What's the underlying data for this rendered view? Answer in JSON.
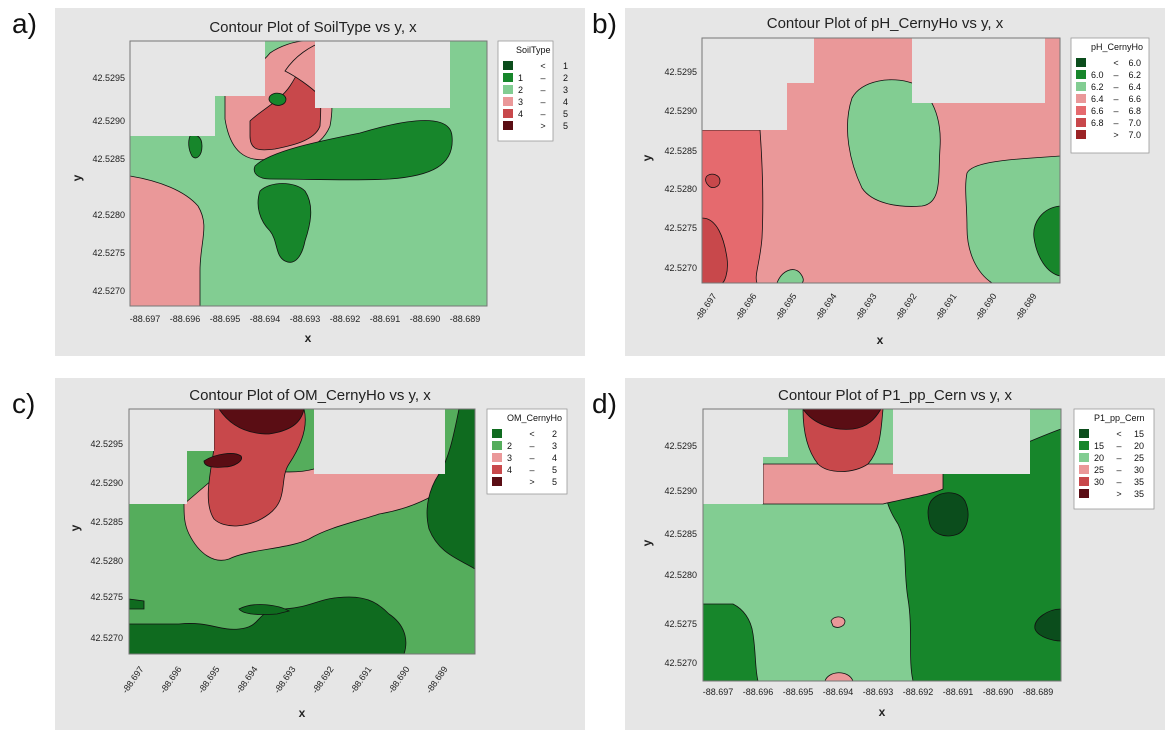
{
  "panel_tags": [
    "a)",
    "b)",
    "c)",
    "d)"
  ],
  "colors": {
    "c1": "#0b4d1c",
    "c2": "#17862b",
    "c3": "#82cd92",
    "c4": "#ea9899",
    "c5": "#c8484b",
    "c6": "#5a0d14",
    "g_light": "#82cd92",
    "g_mid": "#55ad5c",
    "g_dark": "#0f6b1f",
    "r_light": "#ea9899",
    "r_mid": "#e56a6e",
    "r_dark": "#c8484b",
    "r_deep": "#9b2325",
    "missing": "#e6e6e6",
    "panel_bg": "#e6e6e6"
  },
  "chart_data": [
    {
      "type": "contour",
      "title": "Contour Plot of SoilType vs y, x",
      "xlabel": "x",
      "ylabel": "y",
      "x_ticks": [
        "-88.697",
        "-88.696",
        "-88.695",
        "-88.694",
        "-88.693",
        "-88.692",
        "-88.691",
        "-88.690",
        "-88.689"
      ],
      "y_ticks": [
        "42.5270",
        "42.5275",
        "42.5280",
        "42.5285",
        "42.5290",
        "42.5295"
      ],
      "x_tick_rotation": 0,
      "legend": {
        "title": "SoilType",
        "entries": [
          {
            "low": "",
            "op": "<",
            "high": "1",
            "color": "c1"
          },
          {
            "low": "1",
            "op": "–",
            "high": "2",
            "color": "c2"
          },
          {
            "low": "2",
            "op": "–",
            "high": "3",
            "color": "c3"
          },
          {
            "low": "3",
            "op": "–",
            "high": "4",
            "color": "c4"
          },
          {
            "low": "4",
            "op": "–",
            "high": "5",
            "color": "c5"
          },
          {
            "low": "",
            "op": ">",
            "high": "5",
            "color": "c6"
          }
        ]
      },
      "dominant_level": "2 – 3"
    },
    {
      "type": "contour",
      "title": "Contour Plot of pH_CernyHo vs y, x",
      "xlabel": "x",
      "ylabel": "y",
      "x_ticks": [
        "-88.697",
        "-88.696",
        "-88.695",
        "-88.694",
        "-88.693",
        "-88.692",
        "-88.691",
        "-88.690",
        "-88.689"
      ],
      "y_ticks": [
        "42.5270",
        "42.5275",
        "42.5280",
        "42.5285",
        "42.5290",
        "42.5295"
      ],
      "x_tick_rotation": -55,
      "legend": {
        "title": "pH_CernyHo",
        "entries": [
          {
            "low": "",
            "op": "<",
            "high": "6.0",
            "color": "c1"
          },
          {
            "low": "6.0",
            "op": "–",
            "high": "6.2",
            "color": "c2"
          },
          {
            "low": "6.2",
            "op": "–",
            "high": "6.4",
            "color": "c3"
          },
          {
            "low": "6.4",
            "op": "–",
            "high": "6.6",
            "color": "c4"
          },
          {
            "low": "6.6",
            "op": "–",
            "high": "6.8",
            "color": "r_mid"
          },
          {
            "low": "6.8",
            "op": "–",
            "high": "7.0",
            "color": "c5"
          },
          {
            "low": "",
            "op": ">",
            "high": "7.0",
            "color": "r_deep"
          }
        ]
      },
      "dominant_level": "6.4 – 6.6"
    },
    {
      "type": "contour",
      "title": "Contour Plot of OM_CernyHo vs y, x",
      "xlabel": "x",
      "ylabel": "y",
      "x_ticks": [
        "-88.697",
        "-88.696",
        "-88.695",
        "-88.694",
        "-88.693",
        "-88.692",
        "-88.691",
        "-88.690",
        "-88.689"
      ],
      "y_ticks": [
        "42.5270",
        "42.5275",
        "42.5280",
        "42.5285",
        "42.5290",
        "42.5295"
      ],
      "x_tick_rotation": -55,
      "legend": {
        "title": "OM_CernyHo",
        "entries": [
          {
            "low": "",
            "op": "<",
            "high": "2",
            "color": "g_dark"
          },
          {
            "low": "2",
            "op": "–",
            "high": "3",
            "color": "g_mid"
          },
          {
            "low": "3",
            "op": "–",
            "high": "4",
            "color": "c4"
          },
          {
            "low": "4",
            "op": "–",
            "high": "5",
            "color": "c5"
          },
          {
            "low": "",
            "op": ">",
            "high": "5",
            "color": "c6"
          }
        ]
      },
      "dominant_level": "2 – 3"
    },
    {
      "type": "contour",
      "title": "Contour Plot of P1_pp_Cern vs y, x",
      "xlabel": "x",
      "ylabel": "y",
      "x_ticks": [
        "-88.697",
        "-88.696",
        "-88.695",
        "-88.694",
        "-88.693",
        "-88.692",
        "-88.691",
        "-88.690",
        "-88.689"
      ],
      "y_ticks": [
        "42.5270",
        "42.5275",
        "42.5280",
        "42.5285",
        "42.5290",
        "42.5295"
      ],
      "x_tick_rotation": 0,
      "legend": {
        "title": "P1_pp_Cern",
        "entries": [
          {
            "low": "",
            "op": "<",
            "high": "15",
            "color": "c1"
          },
          {
            "low": "15",
            "op": "–",
            "high": "20",
            "color": "c2"
          },
          {
            "low": "20",
            "op": "–",
            "high": "25",
            "color": "c3"
          },
          {
            "low": "25",
            "op": "–",
            "high": "30",
            "color": "c4"
          },
          {
            "low": "30",
            "op": "–",
            "high": "35",
            "color": "c5"
          },
          {
            "low": "",
            "op": ">",
            "high": "35",
            "color": "c6"
          }
        ]
      },
      "dominant_level": "15 – 20"
    }
  ]
}
